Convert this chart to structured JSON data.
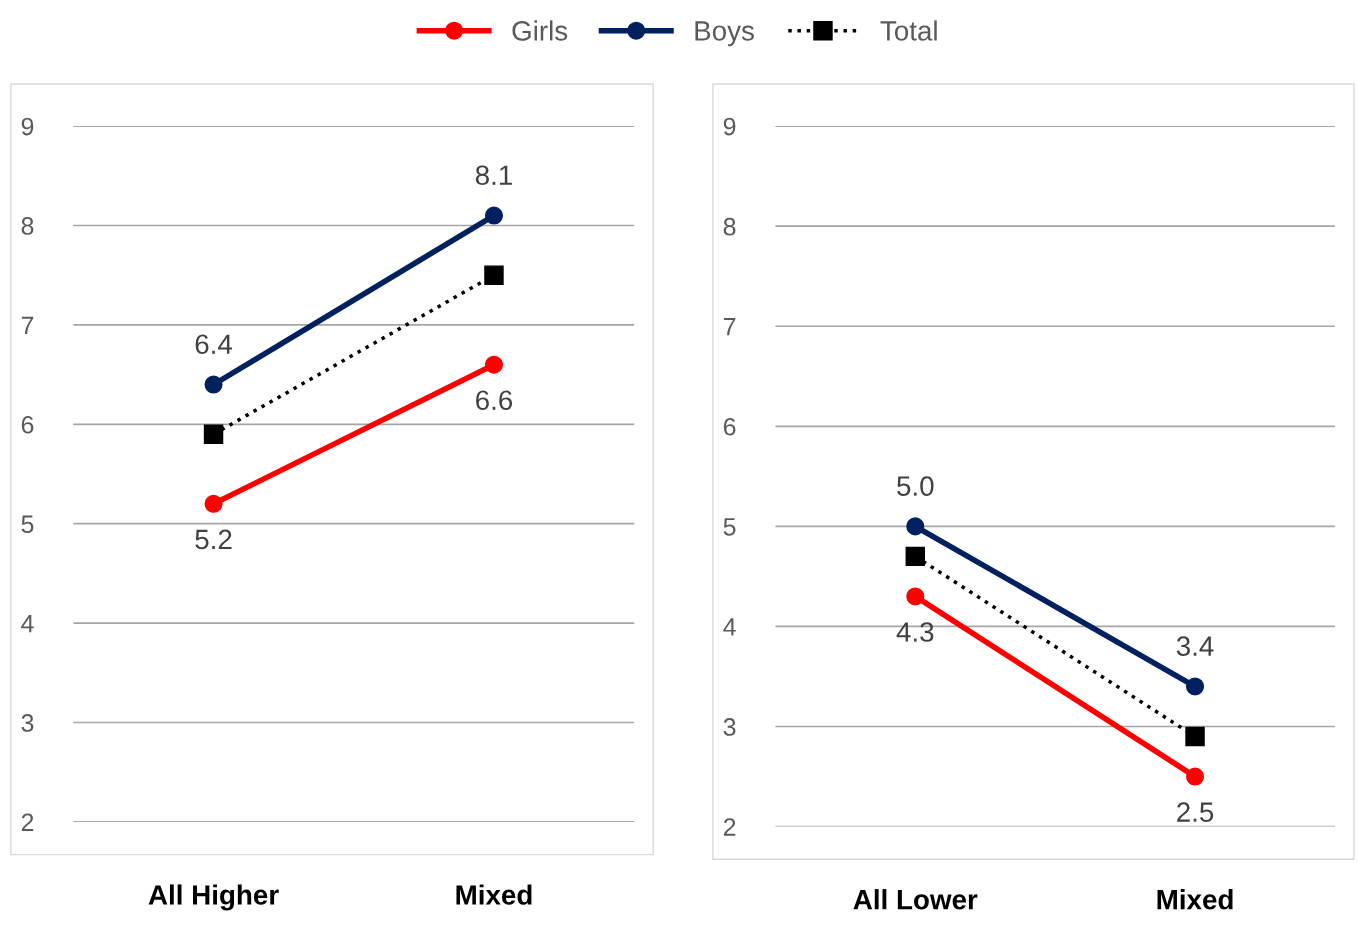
{
  "chart_data": [
    {
      "type": "line",
      "categories": [
        "All Higher",
        "Mixed"
      ],
      "ylim": [
        2,
        9
      ],
      "yticks": [
        2,
        3,
        4,
        5,
        6,
        7,
        8,
        9
      ],
      "grid": "y",
      "legend": "top",
      "series": [
        {
          "name": "Girls",
          "color": "#ff0000",
          "values": [
            5.2,
            6.6
          ],
          "value_labels": [
            "5.2",
            "6.6"
          ],
          "marker": "circle",
          "line_style": "solid"
        },
        {
          "name": "Boys",
          "color": "#002060",
          "values": [
            6.4,
            8.1
          ],
          "value_labels": [
            "6.4",
            "8.1"
          ],
          "marker": "circle",
          "line_style": "solid"
        },
        {
          "name": "Total",
          "color": "#000000",
          "values": [
            5.9,
            7.5
          ],
          "marker": "square",
          "line_style": "dotted"
        }
      ]
    },
    {
      "type": "line",
      "categories": [
        "All Lower",
        "Mixed"
      ],
      "ylim": [
        2,
        9
      ],
      "yticks": [
        2,
        3,
        4,
        5,
        6,
        7,
        8,
        9
      ],
      "grid": "y",
      "series": [
        {
          "color": "#ff0000",
          "values": [
            4.3,
            2.5
          ],
          "value_labels": [
            "4.3",
            "2.5"
          ],
          "marker": "circle",
          "line_style": "solid"
        },
        {
          "color": "#002060",
          "values": [
            5.0,
            3.4
          ],
          "value_labels": [
            "5.0",
            "3.4"
          ],
          "marker": "circle",
          "line_style": "solid"
        },
        {
          "color": "#000000",
          "values": [
            4.7,
            2.9
          ],
          "marker": "square",
          "line_style": "dotted"
        }
      ]
    }
  ]
}
